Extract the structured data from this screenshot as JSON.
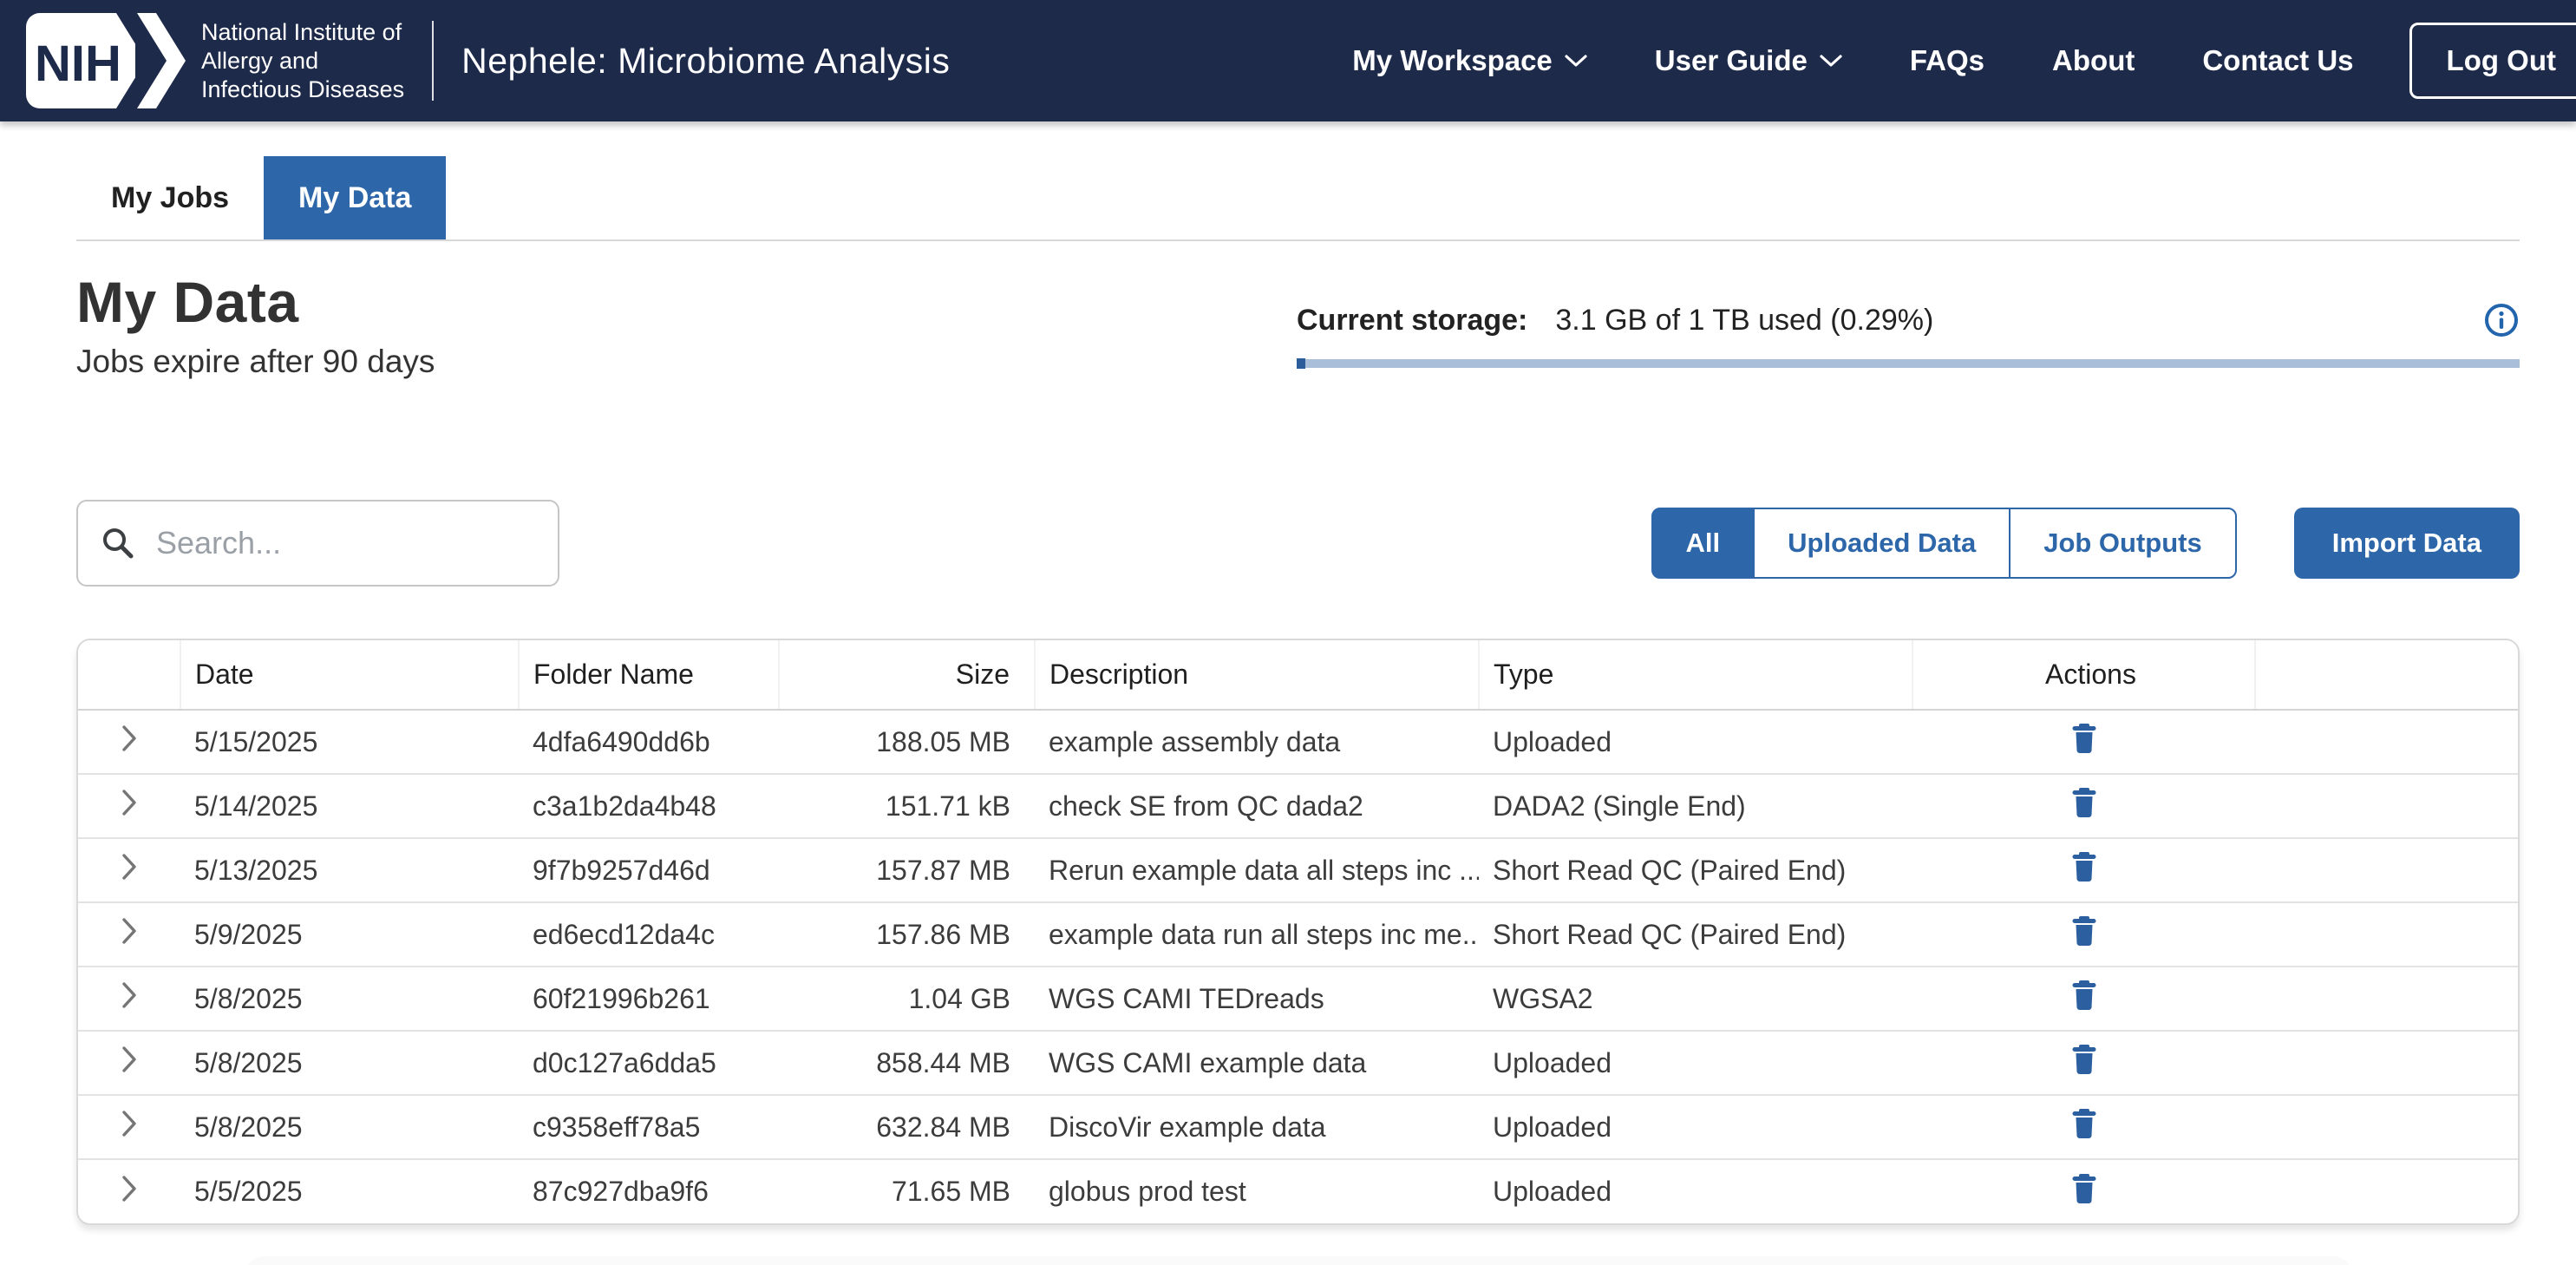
{
  "header": {
    "logo": {
      "acronym": "NIH",
      "institute_lines": [
        "National Institute of",
        "Allergy and",
        "Infectious Diseases"
      ]
    },
    "app_title": "Nephele: Microbiome Analysis",
    "nav": [
      {
        "label": "My Workspace",
        "has_dropdown": true
      },
      {
        "label": "User Guide",
        "has_dropdown": true
      },
      {
        "label": "FAQs",
        "has_dropdown": false
      },
      {
        "label": "About",
        "has_dropdown": false
      },
      {
        "label": "Contact Us",
        "has_dropdown": false
      }
    ],
    "logout_label": "Log Out"
  },
  "tabs": [
    {
      "label": "My Jobs",
      "active": false
    },
    {
      "label": "My Data",
      "active": true
    }
  ],
  "page": {
    "title": "My Data",
    "subtitle": "Jobs expire after 90 days"
  },
  "storage": {
    "label": "Current storage:",
    "value": "3.1 GB of 1 TB used (0.29%)",
    "percent_used": 0.29
  },
  "toolbar": {
    "search_placeholder": "Search...",
    "filters": [
      {
        "label": "All",
        "active": true
      },
      {
        "label": "Uploaded Data",
        "active": false
      },
      {
        "label": "Job Outputs",
        "active": false
      }
    ],
    "import_label": "Import Data"
  },
  "table": {
    "columns": [
      "",
      "Date",
      "Folder Name",
      "Size",
      "Description",
      "Type",
      "Actions",
      ""
    ],
    "rows": [
      {
        "date": "5/15/2025",
        "folder": "4dfa6490dd6b",
        "size": "188.05 MB",
        "description": "example assembly data",
        "type": "Uploaded"
      },
      {
        "date": "5/14/2025",
        "folder": "c3a1b2da4b48",
        "size": "151.71 kB",
        "description": "check SE from QC dada2",
        "type": "DADA2 (Single End)"
      },
      {
        "date": "5/13/2025",
        "folder": "9f7b9257d46d",
        "size": "157.87 MB",
        "description": "Rerun example data all steps inc ...",
        "type": "Short Read QC (Paired End)"
      },
      {
        "date": "5/9/2025",
        "folder": "ed6ecd12da4c",
        "size": "157.86 MB",
        "description": "example data run all steps inc me...",
        "type": "Short Read QC (Paired End)"
      },
      {
        "date": "5/8/2025",
        "folder": "60f21996b261",
        "size": "1.04 GB",
        "description": "WGS CAMI TEDreads",
        "type": "WGSA2"
      },
      {
        "date": "5/8/2025",
        "folder": "d0c127a6dda5",
        "size": "858.44 MB",
        "description": "WGS CAMI example data",
        "type": "Uploaded"
      },
      {
        "date": "5/8/2025",
        "folder": "c9358eff78a5",
        "size": "632.84 MB",
        "description": "DiscoVir example data",
        "type": "Uploaded"
      },
      {
        "date": "5/5/2025",
        "folder": "87c927dba9f6",
        "size": "71.65 MB",
        "description": "globus prod test",
        "type": "Uploaded"
      }
    ]
  },
  "colors": {
    "header_navy": "#1e2a4a",
    "accent_blue": "#2d67a9",
    "icon_blue": "#2c5f9f",
    "progress_track": "#a9bed8",
    "progress_fill": "#2b5d9b",
    "border_gray": "#d9d9d9"
  }
}
